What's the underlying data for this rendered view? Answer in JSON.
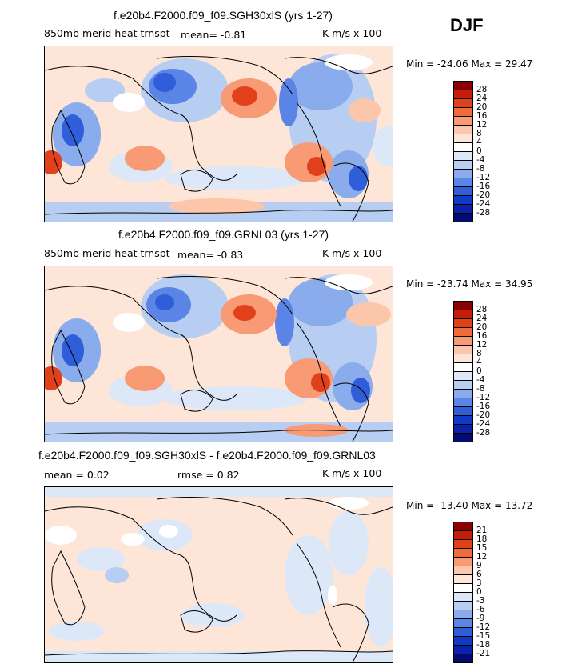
{
  "season": "DJF",
  "colors": {
    "scale": [
      "#8b0000",
      "#c41e0a",
      "#e0401a",
      "#f06a3a",
      "#f89a74",
      "#fcc6aa",
      "#fde6d8",
      "#ffffff",
      "#dce8f8",
      "#b7cdf2",
      "#8aacec",
      "#5a84e6",
      "#2f5ed8",
      "#0f3ac6",
      "#0a21a8",
      "#030b6e"
    ]
  },
  "panels": [
    {
      "title": "f.e20b4.F2000.f09_f09.SGH30xlS (yrs 1-27)",
      "left_label": "850mb merid heat trnspt",
      "mean_text": "mean=   -0.81",
      "units": "K m/s x 100",
      "minmax": "Min = -24.06 Max =  29.47",
      "levels": [
        "28",
        "24",
        "20",
        "16",
        "12",
        "8",
        "4",
        "0",
        "-4",
        "-8",
        "-12",
        "-16",
        "-20",
        "-24",
        "-28"
      ]
    },
    {
      "title": "f.e20b4.F2000.f09_f09.GRNL03 (yrs 1-27)",
      "left_label": "850mb merid heat trnspt",
      "mean_text": "mean=   -0.83",
      "units": "K m/s x 100",
      "minmax": "Min = -23.74 Max =  34.95",
      "levels": [
        "28",
        "24",
        "20",
        "16",
        "12",
        "8",
        "4",
        "0",
        "-4",
        "-8",
        "-12",
        "-16",
        "-20",
        "-24",
        "-28"
      ]
    },
    {
      "title": "f.e20b4.F2000.f09_f09.SGH30xlS - f.e20b4.F2000.f09_f09.GRNL03",
      "left_label": "mean =    0.02",
      "mean_text": "rmse =    0.82",
      "units": "K m/s x 100",
      "minmax": "Min = -13.40 Max =  13.72",
      "levels": [
        "21",
        "18",
        "15",
        "12",
        "9",
        "6",
        "3",
        "0",
        "-3",
        "-6",
        "-9",
        "-12",
        "-15",
        "-18",
        "-21"
      ]
    }
  ]
}
